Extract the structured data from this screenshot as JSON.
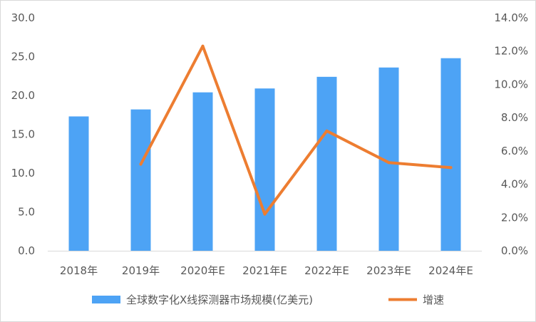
{
  "chart_data": {
    "type": "bar",
    "categories": [
      "2018年",
      "2019年",
      "2020年E",
      "2021年E",
      "2022年E",
      "2023年E",
      "2024年E"
    ],
    "series": [
      {
        "name": "全球数字化X线探测器市场规模(亿美元)",
        "type": "bar",
        "axis": "left",
        "values": [
          17.3,
          18.2,
          20.4,
          20.9,
          22.4,
          23.6,
          24.8
        ]
      },
      {
        "name": "增速",
        "type": "line",
        "axis": "right",
        "values": [
          null,
          5.2,
          12.3,
          2.2,
          7.2,
          5.3,
          5.0
        ]
      }
    ],
    "y_left": {
      "min": 0,
      "max": 30,
      "step": 5,
      "ticks": [
        "0.0",
        "5.0",
        "10.0",
        "15.0",
        "20.0",
        "25.0",
        "30.0"
      ]
    },
    "y_right": {
      "min": 0,
      "max": 14,
      "step": 2,
      "unit": "%",
      "ticks": [
        "0.0%",
        "2.0%",
        "4.0%",
        "6.0%",
        "8.0%",
        "10.0%",
        "12.0%",
        "14.0%"
      ]
    },
    "grid": false,
    "legend": "bottom",
    "colors": {
      "bar": "#4da3f5",
      "line": "#ed7d31",
      "text": "#595959"
    }
  }
}
